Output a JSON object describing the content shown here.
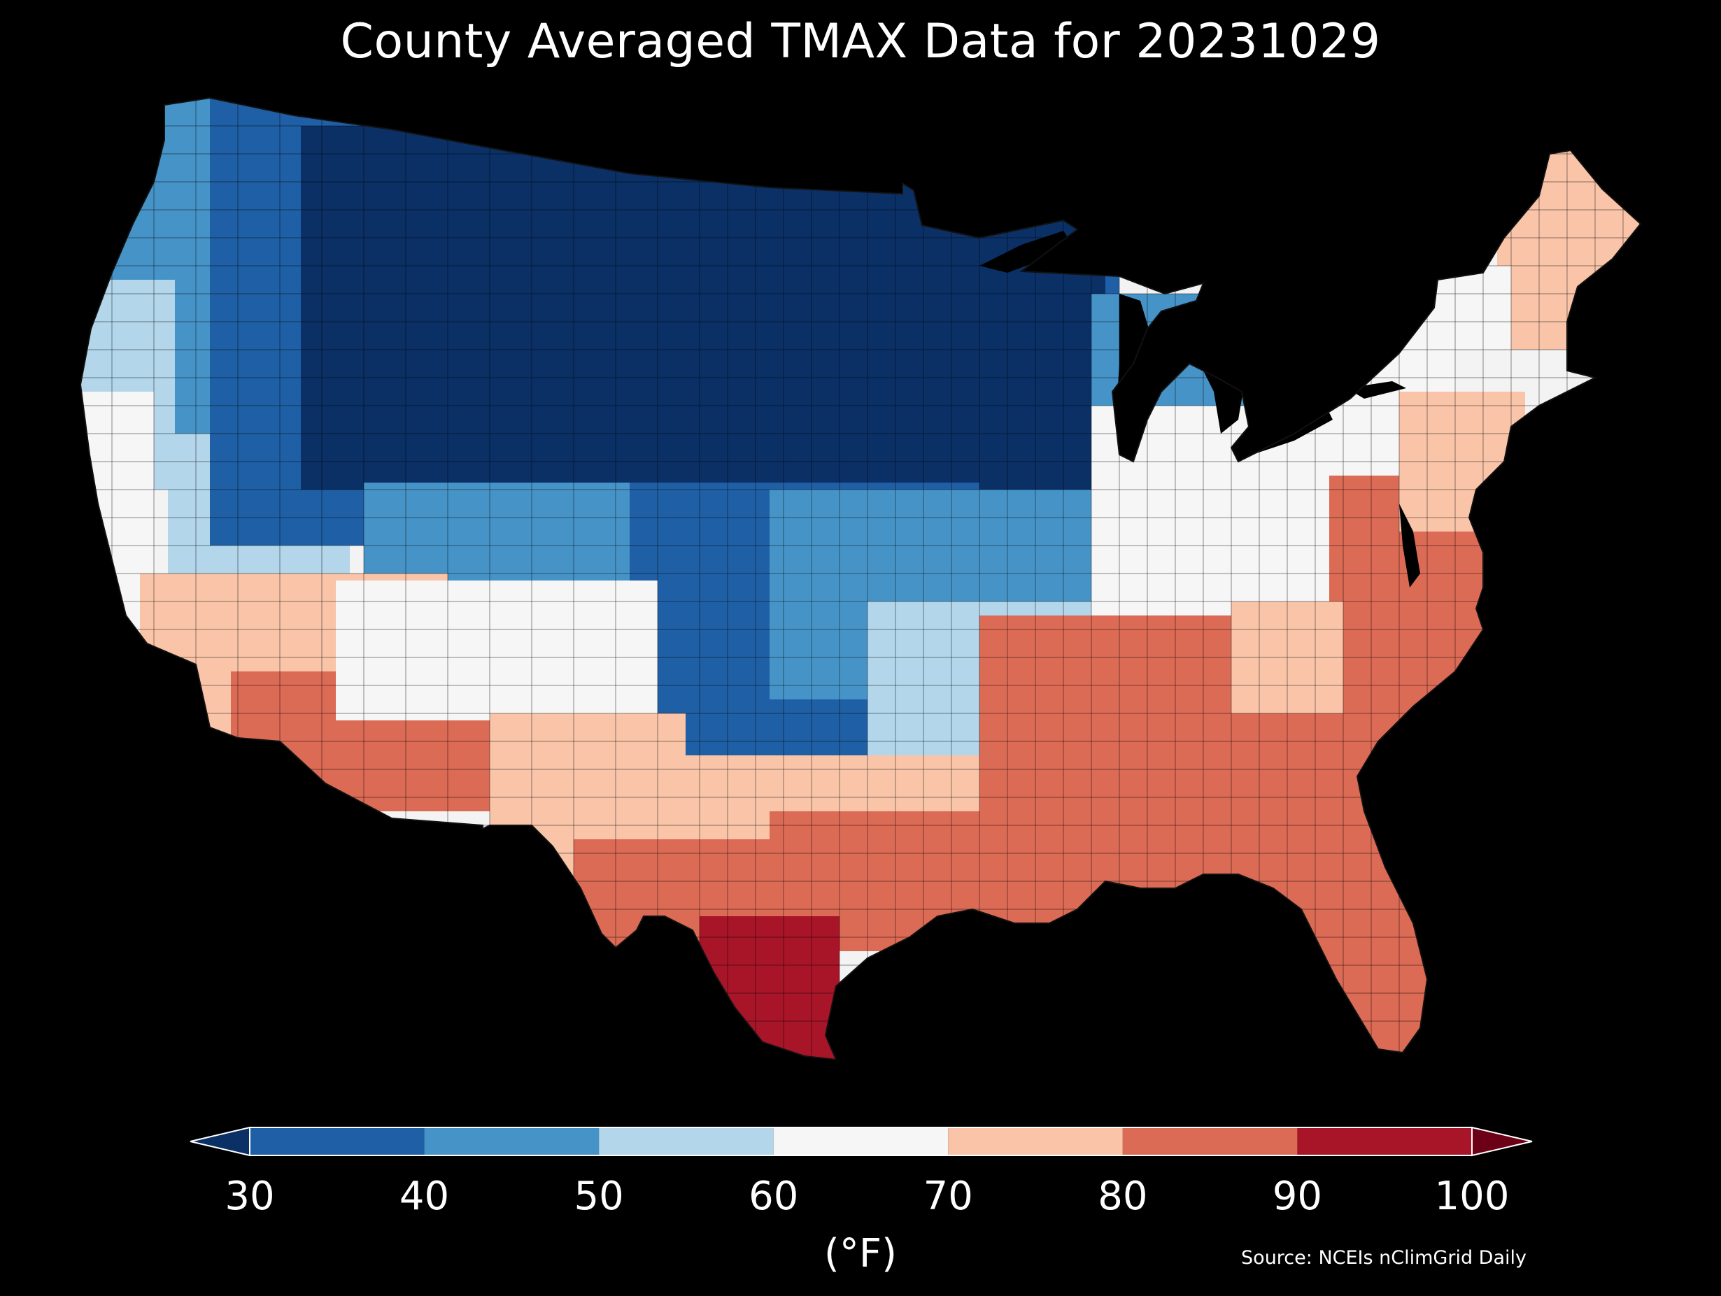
{
  "map": {
    "title": "County Averaged TMAX Data for 20231029",
    "region": "Contiguous United States (county level)",
    "background_color": "#000000",
    "boundary_color": "#000000"
  },
  "legend": {
    "unit_label": "(°F)",
    "ticks": [
      "30",
      "40",
      "50",
      "60",
      "70",
      "80",
      "90",
      "100"
    ],
    "bins": [
      {
        "from": 30,
        "to": 40,
        "color": "#1f5fa6"
      },
      {
        "from": 40,
        "to": 50,
        "color": "#4694c7"
      },
      {
        "from": 50,
        "to": 60,
        "color": "#b3d6ea"
      },
      {
        "from": 60,
        "to": 70,
        "color": "#f6f6f6"
      },
      {
        "from": 70,
        "to": 80,
        "color": "#f9c4a8"
      },
      {
        "from": 80,
        "to": 90,
        "color": "#dc6b55"
      },
      {
        "from": 90,
        "to": 100,
        "color": "#a81428"
      }
    ],
    "under_color": "#0b3066",
    "over_color": "#6b0016",
    "extend": "both"
  },
  "source": {
    "text": "Source: NCEIs nClimGrid Daily"
  }
}
